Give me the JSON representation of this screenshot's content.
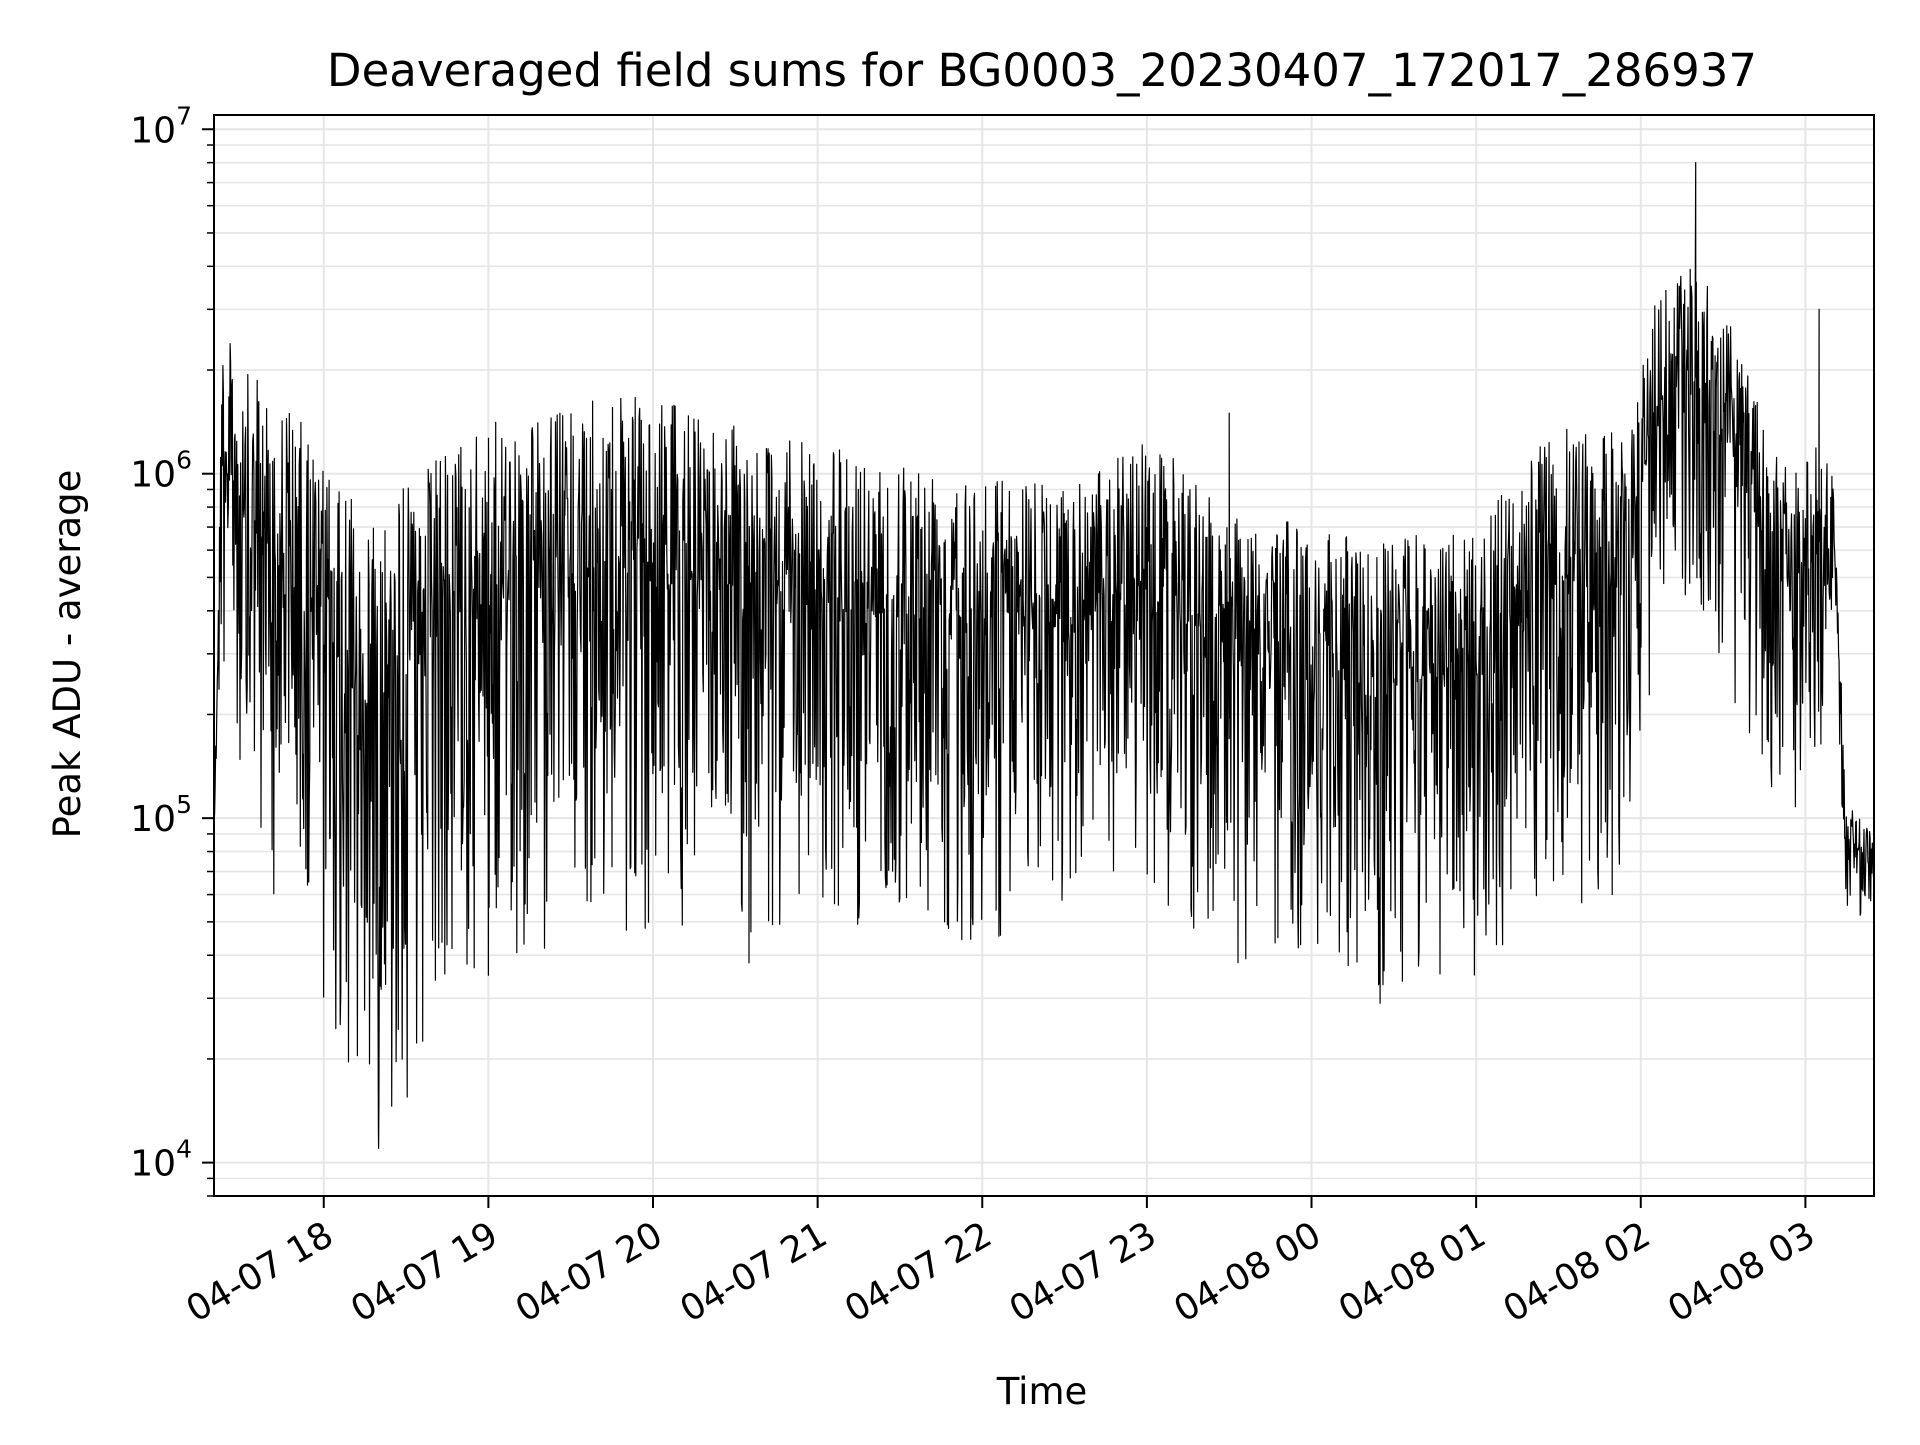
{
  "chart_data": {
    "type": "line",
    "title": "Deaveraged field sums for BG0003_20230407_172017_286937",
    "xlabel": "Time",
    "ylabel": "Peak ADU - average",
    "yscale": "log",
    "ylim": [
      8000,
      11000000
    ],
    "xlim": [
      "2023-04-07 17:20",
      "2023-04-08 03:25"
    ],
    "grid": true,
    "grid_minor": true,
    "line_color": "#000000",
    "grid_color": "#e6e6e6",
    "x_ticks": [
      {
        "value": "2023-04-07 18:00",
        "label": "04-07 18"
      },
      {
        "value": "2023-04-07 19:00",
        "label": "04-07 19"
      },
      {
        "value": "2023-04-07 20:00",
        "label": "04-07 20"
      },
      {
        "value": "2023-04-07 21:00",
        "label": "04-07 21"
      },
      {
        "value": "2023-04-07 22:00",
        "label": "04-07 22"
      },
      {
        "value": "2023-04-07 23:00",
        "label": "04-07 23"
      },
      {
        "value": "2023-04-08 00:00",
        "label": "04-08 00"
      },
      {
        "value": "2023-04-08 01:00",
        "label": "04-08 01"
      },
      {
        "value": "2023-04-08 02:00",
        "label": "04-08 02"
      },
      {
        "value": "2023-04-08 03:00",
        "label": "04-08 03"
      }
    ],
    "y_ticks": [
      {
        "value": 10000,
        "base": "10",
        "exp": "4"
      },
      {
        "value": 100000,
        "base": "10",
        "exp": "5"
      },
      {
        "value": 1000000,
        "base": "10",
        "exp": "6"
      },
      {
        "value": 10000000,
        "base": "10",
        "exp": "7"
      }
    ],
    "series": [
      {
        "envelope": [
          {
            "t": "2023-04-07 17:20",
            "upper": 100000,
            "lower": 90000
          },
          {
            "t": "2023-04-07 17:23",
            "upper": 2800000,
            "lower": 200000
          },
          {
            "t": "2023-04-07 17:30",
            "upper": 2000000,
            "lower": 80000
          },
          {
            "t": "2023-04-07 17:40",
            "upper": 1800000,
            "lower": 60000
          },
          {
            "t": "2023-04-07 17:50",
            "upper": 1500000,
            "lower": 50000
          },
          {
            "t": "2023-04-07 18:05",
            "upper": 900000,
            "lower": 20000
          },
          {
            "t": "2023-04-07 18:15",
            "upper": 800000,
            "lower": 11000
          },
          {
            "t": "2023-04-07 18:30",
            "upper": 950000,
            "lower": 15000
          },
          {
            "t": "2023-04-07 18:45",
            "upper": 1200000,
            "lower": 28000
          },
          {
            "t": "2023-04-07 19:00",
            "upper": 1400000,
            "lower": 35000
          },
          {
            "t": "2023-04-07 19:30",
            "upper": 1550000,
            "lower": 45000
          },
          {
            "t": "2023-04-07 19:45",
            "upper": 1700000,
            "lower": 48000
          },
          {
            "t": "2023-04-07 20:00",
            "upper": 1650000,
            "lower": 45000
          },
          {
            "t": "2023-04-07 20:30",
            "upper": 1400000,
            "lower": 40000
          },
          {
            "t": "2023-04-07 21:00",
            "upper": 1200000,
            "lower": 50000
          },
          {
            "t": "2023-04-07 21:30",
            "upper": 1150000,
            "lower": 48000
          },
          {
            "t": "2023-04-07 22:00",
            "upper": 1050000,
            "lower": 43000
          },
          {
            "t": "2023-04-07 22:30",
            "upper": 900000,
            "lower": 55000
          },
          {
            "t": "2023-04-07 23:00",
            "upper": 1300000,
            "lower": 60000
          },
          {
            "t": "2023-04-07 23:30",
            "upper": 800000,
            "lower": 36000
          },
          {
            "t": "2023-04-08 00:00",
            "upper": 700000,
            "lower": 42000
          },
          {
            "t": "2023-04-08 00:30",
            "upper": 650000,
            "lower": 29000
          },
          {
            "t": "2023-04-08 01:00",
            "upper": 700000,
            "lower": 35000
          },
          {
            "t": "2023-04-08 01:30",
            "upper": 1400000,
            "lower": 55000
          },
          {
            "t": "2023-04-08 01:55",
            "upper": 1300000,
            "lower": 55000
          },
          {
            "t": "2023-04-08 02:05",
            "upper": 3500000,
            "lower": 300000
          },
          {
            "t": "2023-04-08 02:20",
            "upper": 4000000,
            "lower": 450000
          },
          {
            "t": "2023-04-08 02:35",
            "upper": 2500000,
            "lower": 200000
          },
          {
            "t": "2023-04-08 02:50",
            "upper": 1100000,
            "lower": 90000
          },
          {
            "t": "2023-04-08 03:05",
            "upper": 1200000,
            "lower": 120000
          },
          {
            "t": "2023-04-08 03:10",
            "upper": 1000000,
            "lower": 400000
          },
          {
            "t": "2023-04-08 03:15",
            "upper": 110000,
            "lower": 55000
          },
          {
            "t": "2023-04-08 03:25",
            "upper": 90000,
            "lower": 45000
          }
        ],
        "spikes": [
          {
            "t": "2023-04-07 18:20",
            "value": 11000
          },
          {
            "t": "2023-04-07 19:00",
            "value": 35000
          },
          {
            "t": "2023-04-07 20:35",
            "value": 38000
          },
          {
            "t": "2023-04-07 23:30",
            "value": 1500000
          },
          {
            "t": "2023-04-08 00:25",
            "value": 29000
          },
          {
            "t": "2023-04-08 02:20",
            "value": 8000000
          },
          {
            "t": "2023-04-08 03:05",
            "value": 3000000
          }
        ]
      }
    ]
  }
}
